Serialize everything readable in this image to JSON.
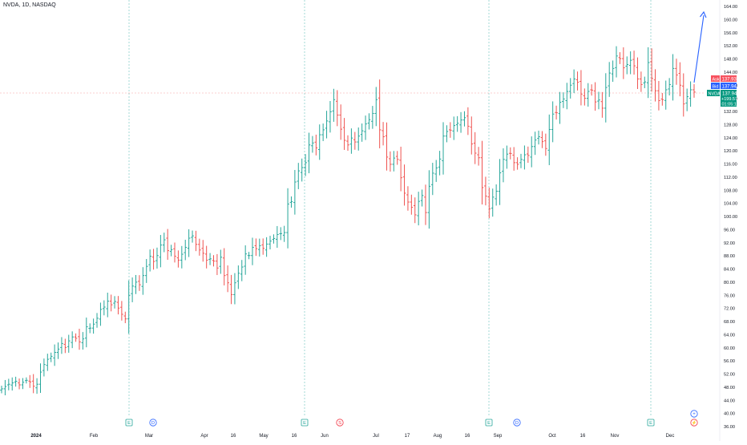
{
  "header": {
    "title": "NVDA, 1D, NASDAQ"
  },
  "price_badges": {
    "ask_label": "Ask",
    "ask_value": "137.93",
    "bid_label": "Bid",
    "bid_value": "137.94",
    "symbol_label": "NVDA",
    "last_value": "137.94",
    "change_text": "+199.57%",
    "countdown_text": "01:05:15"
  },
  "colors": {
    "up": "#26a69a",
    "down": "#ef5350",
    "earnings": "#26a69a",
    "dividend": "#2962ff",
    "split": "#f23645",
    "arrow": "#2962ff",
    "ask_bg": "#f7525f",
    "bid_bg": "#2962ff",
    "last_bg": "#089981"
  },
  "events": [
    {
      "type": "earnings",
      "label": "E",
      "month_pos": "late-Feb"
    },
    {
      "type": "dividend",
      "label": "D",
      "month_pos": "early-Mar"
    },
    {
      "type": "earnings",
      "label": "E",
      "month_pos": "late-May"
    },
    {
      "type": "split",
      "label": "S",
      "month_pos": "early-Jun"
    },
    {
      "type": "earnings",
      "label": "E",
      "month_pos": "late-Aug"
    },
    {
      "type": "dividend",
      "label": "D",
      "month_pos": "early-Sep"
    },
    {
      "type": "earnings",
      "label": "E",
      "month_pos": "late-Nov"
    }
  ],
  "toolbar_icons": {
    "plus_icon": "+",
    "flash_icon": "⚡"
  },
  "chart_data": {
    "type": "bar",
    "subtype": "ohlc",
    "title": "NVDA, 1D, NASDAQ",
    "xlabel": "",
    "ylabel": "",
    "ylim": [
      36,
      166
    ],
    "y_ticks": [
      "164.00",
      "160.00",
      "156.00",
      "152.00",
      "148.00",
      "144.00",
      "140.00",
      "136.00",
      "132.00",
      "128.00",
      "124.00",
      "120.00",
      "116.00",
      "112.00",
      "108.00",
      "104.00",
      "100.00",
      "96.00",
      "92.00",
      "88.00",
      "84.00",
      "80.00",
      "76.00",
      "72.00",
      "68.00",
      "64.00",
      "60.00",
      "56.00",
      "52.00",
      "48.00",
      "44.00",
      "40.00",
      "36.00"
    ],
    "x_ticks": [
      "2024",
      "Feb",
      "Mar",
      "Apr",
      "16",
      "May",
      "16",
      "Jun",
      "Jul",
      "17",
      "Aug",
      "16",
      "Sep",
      "Oct",
      "16",
      "Nov",
      "Dec"
    ],
    "grid": false,
    "legend": "none",
    "series": [
      {
        "values": [
          47.5,
          48.2,
          48.9,
          49.3,
          49.8,
          48.7,
          49.5,
          50.1,
          49.6,
          48.3,
          48.9,
          52.6,
          54.9,
          56.5,
          57.4,
          58.6,
          59.6,
          61.3,
          60.1,
          62.1,
          63.3,
          62.9,
          61.8,
          62.7,
          66.4,
          66.0,
          67.2,
          69.0,
          71.7,
          72.4,
          74.2,
          73.1,
          74.1,
          72.1,
          70.2,
          68.8,
          76.0,
          78.8,
          80.0,
          79.2,
          82.0,
          84.8,
          87.9,
          86.3,
          88.1,
          91.3,
          92.9,
          89.6,
          89.9,
          87.9,
          86.7,
          88.5,
          90.6,
          93.4,
          94.1,
          91.5,
          89.8,
          88.8,
          86.7,
          87.1,
          86.4,
          84.3,
          87.6,
          82.0,
          79.8,
          76.2,
          79.8,
          82.7,
          84.6,
          88.6,
          88.1,
          90.6,
          90.2,
          91.1,
          90.3,
          91.6,
          92.5,
          93.3,
          94.5,
          94.8,
          95.1,
          103.8,
          104.5,
          110.5,
          113.9,
          114.9,
          116.4,
          121.8,
          122.4,
          120.9,
          124.9,
          126.4,
          129.1,
          131.9,
          135.6,
          130.9,
          126.6,
          123.2,
          121.8,
          123.9,
          122.7,
          124.5,
          126.1,
          128.2,
          129.5,
          131.4,
          135.6,
          126.4,
          124.3,
          118.1,
          115.9,
          117.8,
          117.4,
          111.8,
          107.1,
          104.4,
          102.8,
          100.5,
          104.6,
          106.4,
          101.2,
          109.2,
          113.2,
          114.8,
          117.5,
          124.5,
          125.9,
          126.3,
          127.7,
          128.4,
          129.4,
          130.1,
          127.5,
          122.1,
          119.3,
          117.9,
          108.8,
          106.2,
          102.3,
          105.9,
          107.7,
          113.3,
          117.4,
          119.0,
          119.2,
          116.4,
          115.9,
          117.4,
          118.8,
          118.6,
          121.3,
          123.3,
          124.3,
          122.8,
          120.7,
          126.5,
          131.2,
          131.6,
          134.8,
          135.8,
          138.1,
          140.0,
          141.9,
          140.9,
          137.3,
          136.0,
          138.1,
          138.5,
          134.9,
          135.5,
          133.0,
          139.3,
          143.7,
          145.1,
          148.9,
          148.1,
          145.3,
          146.3,
          147.6,
          145.9,
          141.9,
          140.2,
          141.0,
          146.9,
          142.1,
          138.3,
          135.3,
          135.6,
          138.6,
          140.2,
          145.1,
          143.1,
          140.0,
          134.3,
          136.5,
          138.6,
          137.9
        ]
      }
    ]
  }
}
